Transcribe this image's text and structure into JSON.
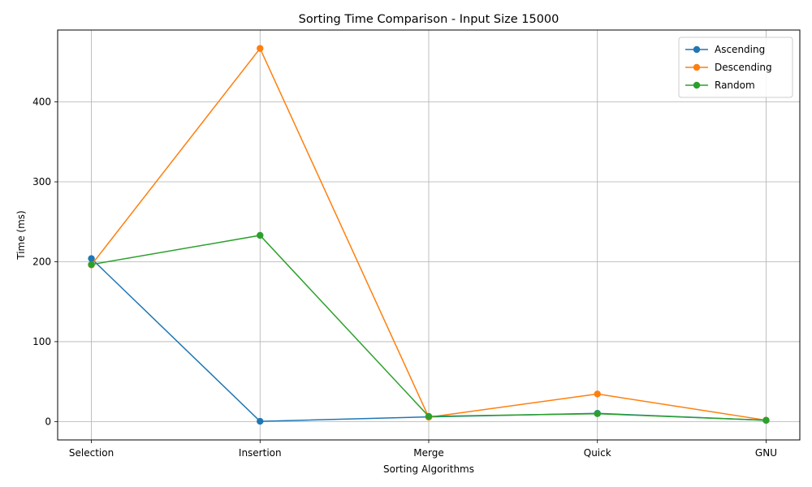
{
  "chart_data": {
    "type": "line",
    "title": "Sorting Time Comparison - Input Size 15000",
    "xlabel": "Sorting Algorithms",
    "ylabel": "Time (ms)",
    "categories": [
      "Selection",
      "Insertion",
      "Merge",
      "Quick",
      "GNU"
    ],
    "ylim": [
      -23,
      490
    ],
    "yticks": [
      0,
      100,
      200,
      300,
      400
    ],
    "grid": true,
    "legend_position": "top-right",
    "series": [
      {
        "name": "Ascending",
        "color": "#1f77b4",
        "marker": "circle",
        "values": [
          204,
          0.3,
          5.8,
          10.3,
          1.5
        ]
      },
      {
        "name": "Descending",
        "color": "#ff7f0e",
        "marker": "circle",
        "values": [
          196,
          467,
          5.4,
          34.5,
          1.7
        ]
      },
      {
        "name": "Random",
        "color": "#2ca02c",
        "marker": "circle",
        "values": [
          196.5,
          233,
          6.5,
          9.8,
          1.6
        ]
      }
    ]
  }
}
